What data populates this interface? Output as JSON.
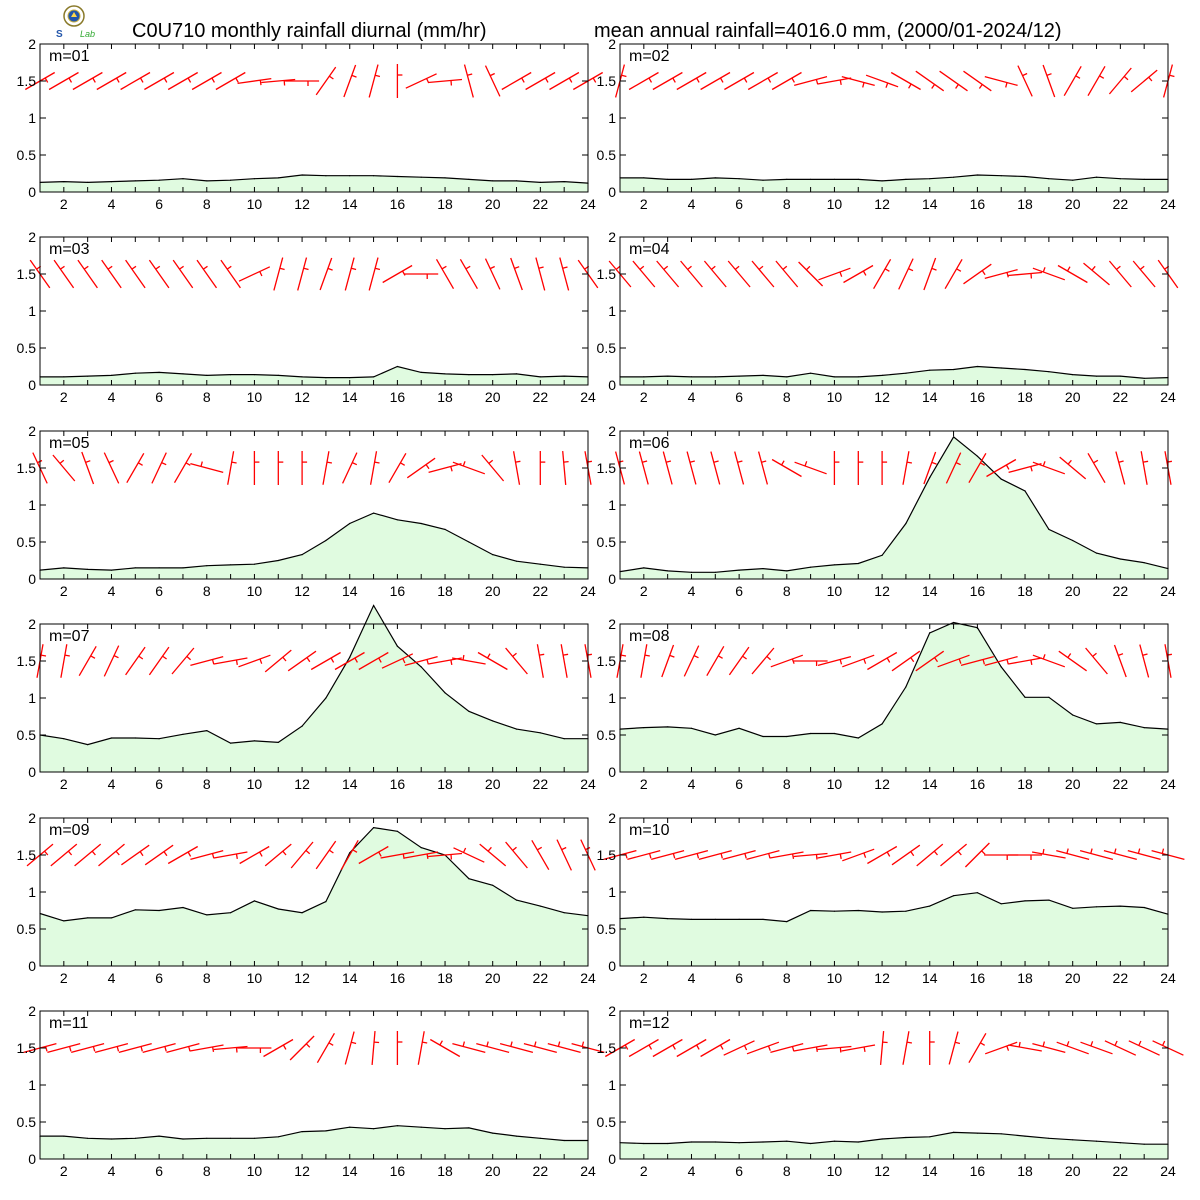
{
  "titles": {
    "left": "C0U710 monthly rainfall diurnal (mm/hr)",
    "right": "mean annual rainfall=4016.0 mm, (2000/01-2024/12)"
  },
  "logo": {
    "icon": "weather-agency-seal-icon",
    "text": "Lab"
  },
  "colors": {
    "fill": "#e0fbe0",
    "line": "#000000",
    "barb": "#ff0000"
  },
  "chart_data": [
    {
      "type": "area",
      "label": "m=01",
      "x": [
        1,
        2,
        3,
        4,
        5,
        6,
        7,
        8,
        9,
        10,
        11,
        12,
        13,
        14,
        15,
        16,
        17,
        18,
        19,
        20,
        21,
        22,
        23,
        24
      ],
      "values": [
        0.13,
        0.14,
        0.13,
        0.14,
        0.15,
        0.16,
        0.18,
        0.15,
        0.16,
        0.18,
        0.19,
        0.23,
        0.22,
        0.22,
        0.22,
        0.21,
        0.2,
        0.19,
        0.17,
        0.15,
        0.15,
        0.13,
        0.14,
        0.12
      ],
      "xlim": [
        1,
        24
      ],
      "ylim": [
        0,
        2
      ],
      "xticks": [
        2,
        4,
        6,
        8,
        10,
        12,
        14,
        16,
        18,
        20,
        22,
        24
      ],
      "yticks": [
        0,
        0.5,
        1,
        1.5,
        2
      ],
      "wind_dir_deg": [
        60,
        60,
        60,
        60,
        60,
        60,
        60,
        60,
        60,
        82,
        85,
        90,
        35,
        20,
        15,
        0,
        65,
        85,
        -15,
        -25,
        60,
        60,
        60,
        60
      ]
    },
    {
      "type": "area",
      "label": "m=02",
      "x": [
        1,
        2,
        3,
        4,
        5,
        6,
        7,
        8,
        9,
        10,
        11,
        12,
        13,
        14,
        15,
        16,
        17,
        18,
        19,
        20,
        21,
        22,
        23,
        24
      ],
      "values": [
        0.19,
        0.19,
        0.17,
        0.17,
        0.19,
        0.18,
        0.16,
        0.17,
        0.17,
        0.17,
        0.17,
        0.15,
        0.17,
        0.18,
        0.2,
        0.23,
        0.22,
        0.21,
        0.18,
        0.16,
        0.2,
        0.18,
        0.17,
        0.17
      ],
      "xlim": [
        1,
        24
      ],
      "ylim": [
        0,
        2
      ],
      "xticks": [
        2,
        4,
        6,
        8,
        10,
        12,
        14,
        16,
        18,
        20,
        22,
        24
      ],
      "yticks": [
        0,
        0.5,
        1,
        1.5,
        2
      ],
      "wind_dir_deg": [
        15,
        60,
        60,
        60,
        60,
        60,
        60,
        60,
        75,
        80,
        105,
        110,
        120,
        125,
        125,
        125,
        105,
        -25,
        -20,
        30,
        30,
        40,
        50,
        15
      ]
    },
    {
      "type": "area",
      "label": "m=03",
      "x": [
        1,
        2,
        3,
        4,
        5,
        6,
        7,
        8,
        9,
        10,
        11,
        12,
        13,
        14,
        15,
        16,
        17,
        18,
        19,
        20,
        21,
        22,
        23,
        24
      ],
      "values": [
        0.11,
        0.11,
        0.12,
        0.13,
        0.16,
        0.17,
        0.15,
        0.13,
        0.14,
        0.14,
        0.13,
        0.11,
        0.1,
        0.1,
        0.11,
        0.25,
        0.17,
        0.15,
        0.14,
        0.14,
        0.15,
        0.11,
        0.12,
        0.11
      ],
      "xlim": [
        1,
        24
      ],
      "ylim": [
        0,
        2
      ],
      "xticks": [
        2,
        4,
        6,
        8,
        10,
        12,
        14,
        16,
        18,
        20,
        22,
        24
      ],
      "yticks": [
        0,
        0.5,
        1,
        1.5,
        2
      ],
      "wind_dir_deg": [
        -35,
        -35,
        -35,
        -35,
        -35,
        -35,
        -35,
        -35,
        -35,
        65,
        15,
        15,
        20,
        15,
        15,
        60,
        90,
        -30,
        -30,
        -25,
        -20,
        -15,
        -15,
        -35
      ]
    },
    {
      "type": "area",
      "label": "m=04",
      "x": [
        1,
        2,
        3,
        4,
        5,
        6,
        7,
        8,
        9,
        10,
        11,
        12,
        13,
        14,
        15,
        16,
        17,
        18,
        19,
        20,
        21,
        22,
        23,
        24
      ],
      "values": [
        0.11,
        0.11,
        0.12,
        0.11,
        0.11,
        0.12,
        0.13,
        0.11,
        0.16,
        0.11,
        0.11,
        0.13,
        0.16,
        0.2,
        0.21,
        0.25,
        0.23,
        0.21,
        0.18,
        0.14,
        0.12,
        0.12,
        0.09,
        0.1
      ],
      "xlim": [
        1,
        24
      ],
      "ylim": [
        0,
        2
      ],
      "xticks": [
        2,
        4,
        6,
        8,
        10,
        12,
        14,
        16,
        18,
        20,
        22,
        24
      ],
      "yticks": [
        0,
        0.5,
        1,
        1.5,
        2
      ],
      "wind_dir_deg": [
        -40,
        -40,
        -40,
        -40,
        -40,
        -40,
        -40,
        -40,
        -45,
        70,
        60,
        30,
        25,
        20,
        30,
        55,
        75,
        85,
        -70,
        -60,
        -50,
        -40,
        -40,
        -35
      ]
    },
    {
      "type": "area",
      "label": "m=05",
      "x": [
        1,
        2,
        3,
        4,
        5,
        6,
        7,
        8,
        9,
        10,
        11,
        12,
        13,
        14,
        15,
        16,
        17,
        18,
        19,
        20,
        21,
        22,
        23,
        24
      ],
      "values": [
        0.12,
        0.15,
        0.13,
        0.12,
        0.15,
        0.15,
        0.15,
        0.18,
        0.19,
        0.2,
        0.25,
        0.33,
        0.52,
        0.75,
        0.89,
        0.8,
        0.75,
        0.67,
        0.5,
        0.33,
        0.24,
        0.2,
        0.16,
        0.15
      ],
      "xlim": [
        1,
        24
      ],
      "ylim": [
        0,
        2
      ],
      "xticks": [
        2,
        4,
        6,
        8,
        10,
        12,
        14,
        16,
        18,
        20,
        22,
        24
      ],
      "yticks": [
        0,
        0.5,
        1,
        1.5,
        2
      ],
      "wind_dir_deg": [
        -25,
        -40,
        -20,
        -25,
        30,
        25,
        30,
        -75,
        10,
        0,
        0,
        0,
        10,
        25,
        10,
        30,
        55,
        75,
        -70,
        -40,
        -10,
        0,
        -5,
        -10
      ]
    },
    {
      "type": "area",
      "label": "m=06",
      "x": [
        1,
        2,
        3,
        4,
        5,
        6,
        7,
        8,
        9,
        10,
        11,
        12,
        13,
        14,
        15,
        16,
        17,
        18,
        19,
        20,
        21,
        22,
        23,
        24
      ],
      "values": [
        0.1,
        0.15,
        0.11,
        0.09,
        0.09,
        0.12,
        0.14,
        0.11,
        0.16,
        0.19,
        0.21,
        0.32,
        0.75,
        1.37,
        1.92,
        1.66,
        1.35,
        1.19,
        0.67,
        0.52,
        0.35,
        0.27,
        0.22,
        0.14
      ],
      "xlim": [
        1,
        24
      ],
      "ylim": [
        0,
        2
      ],
      "xticks": [
        2,
        4,
        6,
        8,
        10,
        12,
        14,
        16,
        18,
        20,
        22,
        24
      ],
      "yticks": [
        0,
        0.5,
        1,
        1.5,
        2
      ],
      "wind_dir_deg": [
        -15,
        -15,
        -15,
        -15,
        -15,
        -15,
        -15,
        -60,
        -70,
        0,
        0,
        0,
        10,
        20,
        25,
        30,
        60,
        75,
        -70,
        -50,
        -30,
        -15,
        -10,
        -10
      ]
    },
    {
      "type": "area",
      "label": "m=07",
      "x": [
        1,
        2,
        3,
        4,
        5,
        6,
        7,
        8,
        9,
        10,
        11,
        12,
        13,
        14,
        15,
        16,
        17,
        18,
        19,
        20,
        21,
        22,
        23,
        24
      ],
      "values": [
        0.5,
        0.45,
        0.37,
        0.46,
        0.46,
        0.45,
        0.51,
        0.56,
        0.39,
        0.42,
        0.4,
        0.62,
        1.0,
        1.55,
        2.25,
        1.7,
        1.42,
        1.07,
        0.82,
        0.69,
        0.58,
        0.53,
        0.45,
        0.45
      ],
      "xlim": [
        1,
        24
      ],
      "ylim": [
        0,
        2
      ],
      "xticks": [
        2,
        4,
        6,
        8,
        10,
        12,
        14,
        16,
        18,
        20,
        22,
        24
      ],
      "yticks": [
        0,
        0.5,
        1,
        1.5,
        2
      ],
      "wind_dir_deg": [
        10,
        10,
        30,
        25,
        35,
        35,
        40,
        75,
        80,
        70,
        50,
        55,
        60,
        60,
        60,
        65,
        75,
        80,
        -80,
        -60,
        -40,
        -10,
        -10,
        -10
      ]
    },
    {
      "type": "area",
      "label": "m=08",
      "x": [
        1,
        2,
        3,
        4,
        5,
        6,
        7,
        8,
        9,
        10,
        11,
        12,
        13,
        14,
        15,
        16,
        17,
        18,
        19,
        20,
        21,
        22,
        23,
        24
      ],
      "values": [
        0.58,
        0.6,
        0.61,
        0.59,
        0.5,
        0.59,
        0.48,
        0.48,
        0.52,
        0.52,
        0.46,
        0.65,
        1.15,
        1.88,
        2.02,
        1.95,
        1.42,
        1.01,
        1.01,
        0.77,
        0.65,
        0.67,
        0.6,
        0.58
      ],
      "xlim": [
        1,
        24
      ],
      "ylim": [
        0,
        2
      ],
      "xticks": [
        2,
        4,
        6,
        8,
        10,
        12,
        14,
        16,
        18,
        20,
        22,
        24
      ],
      "yticks": [
        0,
        0.5,
        1,
        1.5,
        2
      ],
      "wind_dir_deg": [
        10,
        10,
        20,
        25,
        30,
        35,
        40,
        70,
        90,
        75,
        70,
        60,
        55,
        55,
        70,
        75,
        75,
        80,
        -70,
        -55,
        -40,
        -20,
        -15,
        -10
      ]
    },
    {
      "type": "area",
      "label": "m=09",
      "x": [
        1,
        2,
        3,
        4,
        5,
        6,
        7,
        8,
        9,
        10,
        11,
        12,
        13,
        14,
        15,
        16,
        17,
        18,
        19,
        20,
        21,
        22,
        23,
        24
      ],
      "values": [
        0.71,
        0.61,
        0.65,
        0.65,
        0.76,
        0.75,
        0.79,
        0.69,
        0.72,
        0.88,
        0.77,
        0.72,
        0.87,
        1.53,
        1.87,
        1.82,
        1.6,
        1.5,
        1.18,
        1.09,
        0.89,
        0.81,
        0.72,
        0.68
      ],
      "xlim": [
        1,
        24
      ],
      "ylim": [
        0,
        2
      ],
      "xticks": [
        2,
        4,
        6,
        8,
        10,
        12,
        14,
        16,
        18,
        20,
        22,
        24
      ],
      "yticks": [
        0,
        0.5,
        1,
        1.5,
        2
      ],
      "wind_dir_deg": [
        50,
        50,
        50,
        50,
        55,
        55,
        60,
        75,
        80,
        60,
        50,
        40,
        35,
        30,
        60,
        80,
        80,
        85,
        -65,
        -50,
        -40,
        -30,
        -25,
        -25
      ]
    },
    {
      "type": "area",
      "label": "m=10",
      "x": [
        1,
        2,
        3,
        4,
        5,
        6,
        7,
        8,
        9,
        10,
        11,
        12,
        13,
        14,
        15,
        16,
        17,
        18,
        19,
        20,
        21,
        22,
        23,
        24
      ],
      "values": [
        0.64,
        0.66,
        0.64,
        0.63,
        0.63,
        0.63,
        0.63,
        0.6,
        0.75,
        0.74,
        0.75,
        0.73,
        0.74,
        0.81,
        0.95,
        0.99,
        0.84,
        0.88,
        0.89,
        0.78,
        0.8,
        0.81,
        0.79,
        0.7
      ],
      "xlim": [
        1,
        24
      ],
      "ylim": [
        0,
        2
      ],
      "xticks": [
        2,
        4,
        6,
        8,
        10,
        12,
        14,
        16,
        18,
        20,
        22,
        24
      ],
      "yticks": [
        0,
        0.5,
        1,
        1.5,
        2
      ],
      "wind_dir_deg": [
        75,
        75,
        75,
        75,
        75,
        75,
        75,
        80,
        85,
        80,
        70,
        60,
        55,
        50,
        50,
        45,
        90,
        90,
        -80,
        -75,
        -75,
        -75,
        -75,
        -75
      ]
    },
    {
      "type": "area",
      "label": "m=11",
      "x": [
        1,
        2,
        3,
        4,
        5,
        6,
        7,
        8,
        9,
        10,
        11,
        12,
        13,
        14,
        15,
        16,
        17,
        18,
        19,
        20,
        21,
        22,
        23,
        24
      ],
      "values": [
        0.31,
        0.31,
        0.28,
        0.27,
        0.28,
        0.31,
        0.27,
        0.28,
        0.28,
        0.28,
        0.3,
        0.37,
        0.38,
        0.43,
        0.41,
        0.45,
        0.43,
        0.41,
        0.42,
        0.35,
        0.31,
        0.28,
        0.25,
        0.25
      ],
      "xlim": [
        1,
        24
      ],
      "ylim": [
        0,
        2
      ],
      "xticks": [
        2,
        4,
        6,
        8,
        10,
        12,
        14,
        16,
        18,
        20,
        22,
        24
      ],
      "yticks": [
        0,
        0.5,
        1,
        1.5,
        2
      ],
      "wind_dir_deg": [
        75,
        75,
        75,
        75,
        75,
        75,
        75,
        80,
        85,
        90,
        60,
        45,
        30,
        15,
        5,
        0,
        10,
        -60,
        -75,
        -75,
        -75,
        -75,
        -75,
        -75
      ]
    },
    {
      "type": "area",
      "label": "m=12",
      "x": [
        1,
        2,
        3,
        4,
        5,
        6,
        7,
        8,
        9,
        10,
        11,
        12,
        13,
        14,
        15,
        16,
        17,
        18,
        19,
        20,
        21,
        22,
        23,
        24
      ],
      "values": [
        0.22,
        0.21,
        0.21,
        0.23,
        0.23,
        0.22,
        0.23,
        0.24,
        0.21,
        0.24,
        0.23,
        0.27,
        0.29,
        0.3,
        0.36,
        0.35,
        0.34,
        0.31,
        0.28,
        0.26,
        0.24,
        0.22,
        0.2,
        0.2
      ],
      "xlim": [
        1,
        24
      ],
      "ylim": [
        0,
        2
      ],
      "xticks": [
        2,
        4,
        6,
        8,
        10,
        12,
        14,
        16,
        18,
        20,
        22,
        24
      ],
      "yticks": [
        0,
        0.5,
        1,
        1.5,
        2
      ],
      "wind_dir_deg": [
        60,
        60,
        60,
        60,
        60,
        65,
        70,
        75,
        80,
        85,
        80,
        5,
        10,
        0,
        15,
        30,
        70,
        -80,
        -75,
        -70,
        -70,
        -65,
        -65,
        -65
      ]
    }
  ]
}
